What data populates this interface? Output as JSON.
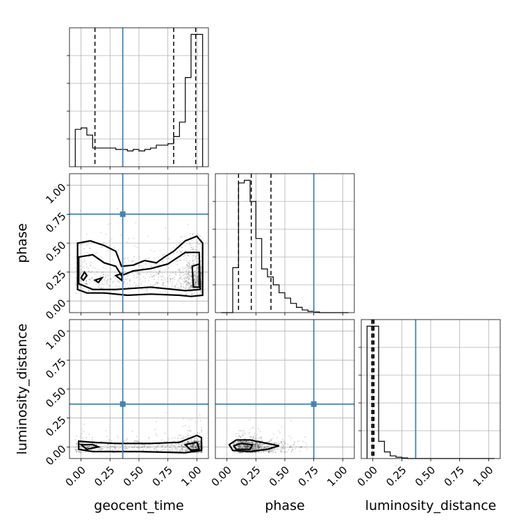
{
  "chart_data": {
    "type": "corner",
    "parameters": [
      "geocent_time",
      "phase",
      "luminosity_distance"
    ],
    "range": [
      -0.1,
      1.1
    ],
    "ticks": [
      0.0,
      0.25,
      0.5,
      0.75,
      1.0
    ],
    "tick_labels": [
      "0.00",
      "0.25",
      "0.50",
      "0.75",
      "1.00"
    ],
    "grid": true,
    "truth_color": "#4682b4",
    "truths": {
      "geocent_time": 0.36,
      "phase": 0.75,
      "luminosity_distance": 0.37
    },
    "diagonal_histograms": [
      {
        "parameter": "geocent_time",
        "bin_edges": [
          -0.05,
          0.0,
          0.05,
          0.1,
          0.15,
          0.2,
          0.25,
          0.3,
          0.35,
          0.4,
          0.45,
          0.5,
          0.55,
          0.6,
          0.65,
          0.7,
          0.75,
          0.8,
          0.85,
          0.9,
          0.95,
          1.0,
          1.05
        ],
        "counts": [
          0.26,
          0.27,
          0.22,
          0.13,
          0.13,
          0.13,
          0.13,
          0.12,
          0.12,
          0.11,
          0.12,
          0.11,
          0.12,
          0.13,
          0.15,
          0.15,
          0.16,
          0.21,
          0.31,
          0.62,
          0.92,
          0.92
        ],
        "quantiles": [
          0.12,
          0.8,
          0.99
        ]
      },
      {
        "parameter": "phase",
        "bin_edges": [
          -0.05,
          0.0,
          0.05,
          0.1,
          0.15,
          0.2,
          0.25,
          0.3,
          0.35,
          0.4,
          0.45,
          0.5,
          0.55,
          0.6,
          0.65,
          0.7,
          0.75,
          0.8,
          0.85,
          0.9,
          0.95,
          1.0,
          1.05
        ],
        "counts": [
          0.0,
          0.0,
          0.34,
          0.98,
          1.0,
          0.84,
          0.56,
          0.33,
          0.27,
          0.21,
          0.15,
          0.11,
          0.07,
          0.04,
          0.02,
          0.01,
          0.005,
          0.0,
          0.0,
          0.0,
          0.0,
          0.0
        ],
        "quantiles": [
          0.1,
          0.21,
          0.38
        ]
      },
      {
        "parameter": "luminosity_distance",
        "bin_edges": [
          -0.05,
          0.0,
          0.05,
          0.1,
          0.15,
          0.2,
          0.25,
          0.3,
          0.35,
          0.4,
          0.45,
          0.5,
          0.55,
          0.6,
          0.65,
          0.7,
          0.75,
          0.8,
          0.85,
          0.9,
          0.95,
          1.0,
          1.05
        ],
        "counts": [
          1.0,
          1.0,
          0.13,
          0.05,
          0.02,
          0.01,
          0.005,
          0.0,
          0.0,
          0.0,
          0.0,
          0.0,
          0.0,
          0.0,
          0.0,
          0.0,
          0.0,
          0.0,
          0.0,
          0.0,
          0.0,
          0.0
        ],
        "quantiles": [
          -0.01,
          0.0,
          0.01
        ]
      }
    ],
    "contour_panels": [
      {
        "x": "geocent_time",
        "y": "phase",
        "contours": [
          [
            [
              -0.03,
              0.5
            ],
            [
              0.08,
              0.52
            ],
            [
              0.2,
              0.48
            ],
            [
              0.3,
              0.43
            ],
            [
              0.35,
              0.3
            ],
            [
              0.45,
              0.31
            ],
            [
              0.55,
              0.35
            ],
            [
              0.65,
              0.33
            ],
            [
              0.72,
              0.38
            ],
            [
              0.8,
              0.43
            ],
            [
              0.9,
              0.52
            ],
            [
              1.0,
              0.56
            ],
            [
              1.05,
              0.5
            ],
            [
              1.05,
              0.05
            ],
            [
              0.95,
              0.04
            ],
            [
              0.85,
              0.05
            ],
            [
              0.6,
              0.06
            ],
            [
              0.4,
              0.05
            ],
            [
              0.2,
              0.07
            ],
            [
              0.05,
              0.07
            ],
            [
              -0.03,
              0.1
            ]
          ],
          [
            [
              -0.02,
              0.38
            ],
            [
              0.1,
              0.4
            ],
            [
              0.2,
              0.33
            ],
            [
              0.3,
              0.3
            ],
            [
              0.35,
              0.22
            ],
            [
              0.45,
              0.26
            ],
            [
              0.6,
              0.28
            ],
            [
              0.75,
              0.32
            ],
            [
              0.9,
              0.42
            ],
            [
              1.02,
              0.42
            ],
            [
              1.03,
              0.1
            ],
            [
              0.9,
              0.09
            ],
            [
              0.6,
              0.12
            ],
            [
              0.3,
              0.1
            ],
            [
              0.1,
              0.1
            ],
            [
              -0.02,
              0.15
            ]
          ],
          [
            [
              0.0,
              0.2
            ],
            [
              0.03,
              0.25
            ],
            [
              0.05,
              0.22
            ],
            [
              0.02,
              0.18
            ]
          ],
          [
            [
              0.12,
              0.18
            ],
            [
              0.18,
              0.2
            ],
            [
              0.15,
              0.16
            ]
          ],
          [
            [
              0.3,
              0.22
            ],
            [
              0.36,
              0.24
            ],
            [
              0.35,
              0.18
            ]
          ],
          [
            [
              0.96,
              0.3
            ],
            [
              1.02,
              0.32
            ],
            [
              1.02,
              0.12
            ],
            [
              0.97,
              0.12
            ]
          ]
        ]
      },
      {
        "x": "geocent_time",
        "y": "luminosity_distance",
        "contours": [
          [
            [
              -0.02,
              0.05
            ],
            [
              0.1,
              0.04
            ],
            [
              0.3,
              0.03
            ],
            [
              0.6,
              0.03
            ],
            [
              0.85,
              0.04
            ],
            [
              1.0,
              0.1
            ],
            [
              1.04,
              0.08
            ],
            [
              1.04,
              -0.03
            ],
            [
              0.9,
              -0.05
            ],
            [
              0.5,
              -0.04
            ],
            [
              0.1,
              -0.04
            ],
            [
              -0.02,
              -0.02
            ]
          ],
          [
            [
              0.0,
              0.02
            ],
            [
              0.1,
              0.02
            ],
            [
              0.15,
              0.0
            ],
            [
              0.05,
              -0.02
            ]
          ],
          [
            [
              0.9,
              0.02
            ],
            [
              1.0,
              0.04
            ],
            [
              1.02,
              -0.02
            ],
            [
              0.95,
              -0.03
            ]
          ]
        ]
      },
      {
        "x": "phase",
        "y": "luminosity_distance",
        "contours": [
          [
            [
              0.02,
              0.02
            ],
            [
              0.08,
              0.06
            ],
            [
              0.2,
              0.06
            ],
            [
              0.35,
              0.03
            ],
            [
              0.45,
              0.01
            ],
            [
              0.35,
              -0.02
            ],
            [
              0.2,
              -0.04
            ],
            [
              0.05,
              -0.03
            ]
          ],
          [
            [
              0.06,
              0.01
            ],
            [
              0.12,
              0.03
            ],
            [
              0.22,
              0.02
            ],
            [
              0.2,
              -0.02
            ],
            [
              0.08,
              -0.02
            ]
          ]
        ]
      }
    ]
  }
}
